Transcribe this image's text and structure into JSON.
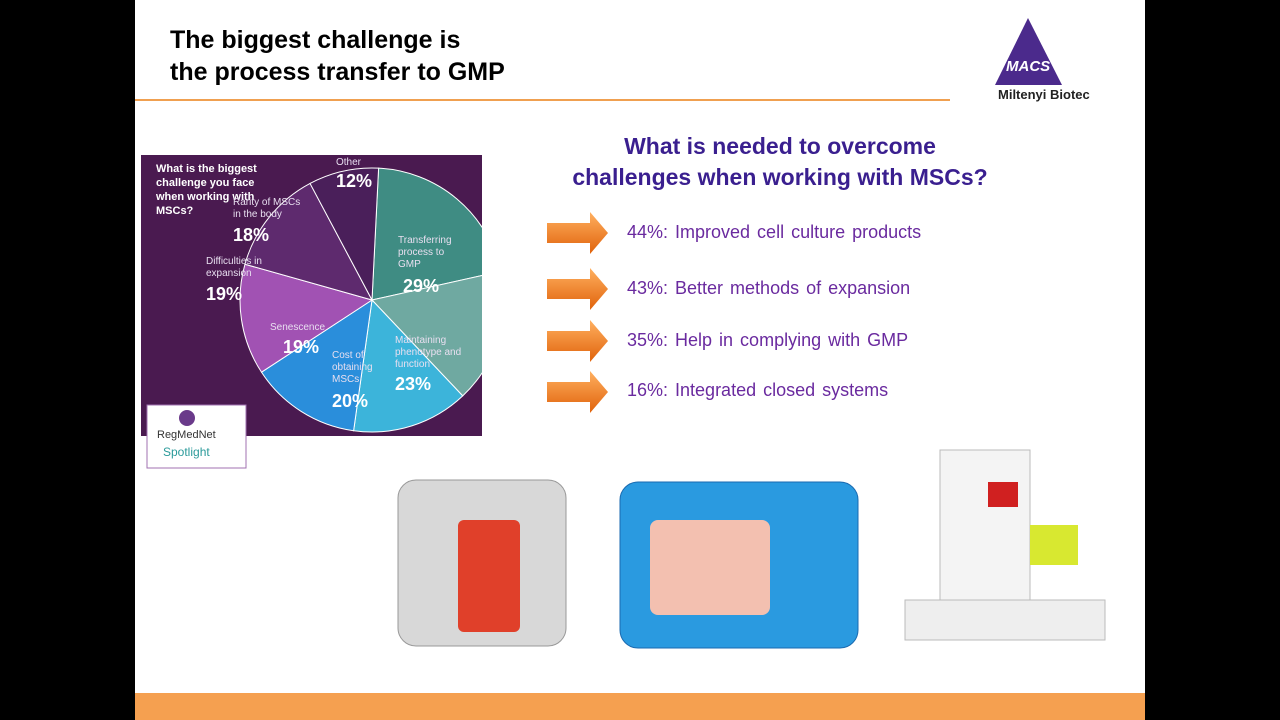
{
  "slide": {
    "title_lines": [
      "The biggest challenge is",
      "the process transfer to GMP"
    ],
    "logo": {
      "mark": "MACS",
      "company": "Miltenyi Biotec"
    },
    "survey": {
      "type": "pie",
      "title": "What is the biggest challenge you face when working with MSCs?",
      "categories": [
        "Transferring process to GMP",
        "Maintaining phenotype and function",
        "Cost of obtaining MSCs",
        "Senescence",
        "Difficulties in expansion",
        "Rarity of MSCs in the body",
        "Other"
      ],
      "values": [
        29,
        23,
        20,
        19,
        19,
        18,
        12
      ],
      "value_labels": [
        "29%",
        "23%",
        "20%",
        "19%",
        "19%",
        "18%",
        "12%"
      ],
      "colors": [
        "#3f8c83",
        "#6fa9a1",
        "#3cb4da",
        "#2a8edb",
        "#a152b3",
        "#5e2a6e",
        "#4a1f5a"
      ],
      "source": [
        "RegMedNet",
        "Spotlight"
      ]
    },
    "needs_heading": [
      "What is needed to overcome",
      "challenges when working with MSCs?"
    ],
    "needs": [
      "44%: Improved cell culture products",
      "43%: Better methods of expansion",
      "35%: Help in complying with GMP",
      "16%: Integrated closed systems"
    ]
  }
}
